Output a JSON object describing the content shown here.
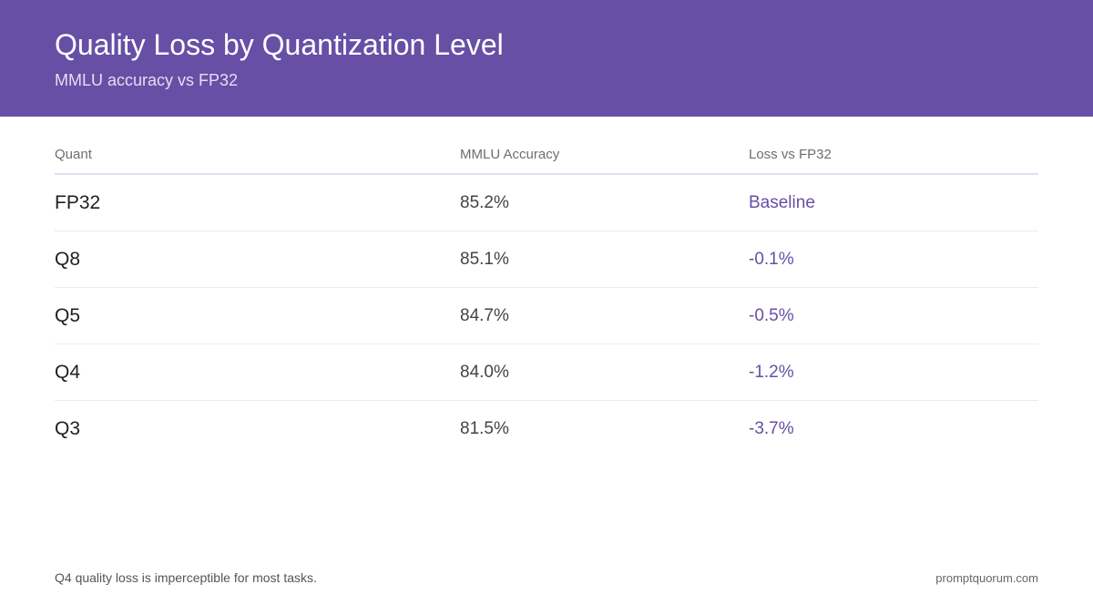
{
  "header": {
    "title": "Quality Loss by Quantization Level",
    "subtitle": "MMLU accuracy vs FP32"
  },
  "table": {
    "columns": [
      "Quant",
      "MMLU Accuracy",
      "Loss vs FP32"
    ],
    "rows": [
      [
        "FP32",
        "85.2%",
        "Baseline"
      ],
      [
        "Q8",
        "85.1%",
        "-0.1%"
      ],
      [
        "Q5",
        "84.7%",
        "-0.5%"
      ],
      [
        "Q4",
        "84.0%",
        "-1.2%"
      ],
      [
        "Q3",
        "81.5%",
        "-3.7%"
      ]
    ]
  },
  "footer": {
    "note": "Q4 quality loss is imperceptible for most tasks.",
    "site": "promptquorum.com"
  },
  "colors": {
    "header_background": "#674fa5",
    "accent_text": "#674fa5",
    "header_rule": "#e2ddf2"
  }
}
